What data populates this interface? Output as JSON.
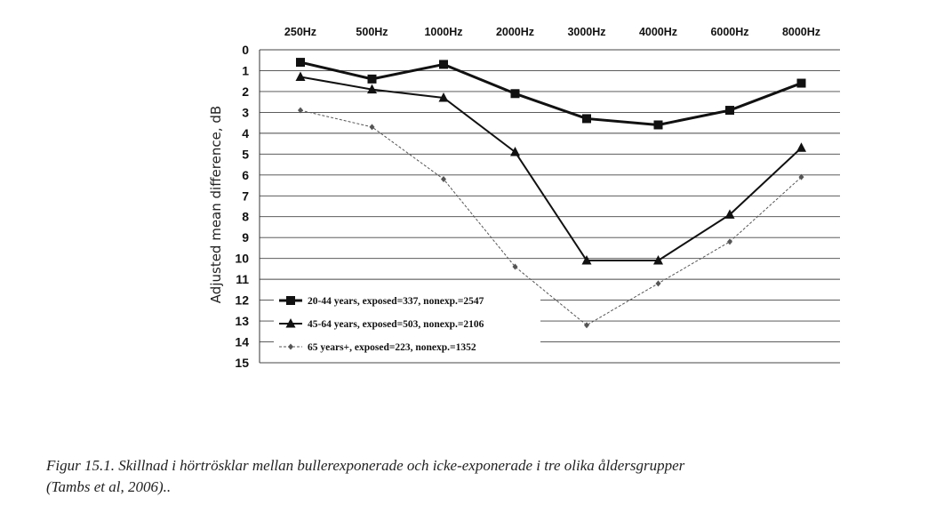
{
  "chart_data": {
    "type": "line",
    "ylabel": "Adjusted mean difference, dB",
    "xlabel": "",
    "categories": [
      "250Hz",
      "500Hz",
      "1000Hz",
      "2000Hz",
      "3000Hz",
      "4000Hz",
      "6000Hz",
      "8000Hz"
    ],
    "ylim": [
      0,
      15
    ],
    "y_inverted": true,
    "y_ticks": [
      "0",
      "1",
      "2",
      "3",
      "4",
      "5",
      "6",
      "7",
      "8",
      "9",
      "10",
      "11",
      "12",
      "13",
      "14",
      "15"
    ],
    "x_axis_position": "top",
    "grid": true,
    "legend_position": "bottom-left",
    "series": [
      {
        "name": "20-44 years, exposed=337, nonexp.=2547",
        "marker": "square",
        "line": "thick",
        "color": "#111111",
        "values": [
          0.6,
          1.4,
          0.7,
          2.1,
          3.3,
          3.6,
          2.9,
          1.6
        ]
      },
      {
        "name": "45-64 years, exposed=503, nonexp.=2106",
        "marker": "triangle",
        "line": "medium",
        "color": "#111111",
        "values": [
          1.3,
          1.9,
          2.3,
          4.9,
          10.1,
          10.1,
          7.9,
          4.7
        ]
      },
      {
        "name": "65 years+, exposed=223, nonexp.=1352",
        "marker": "diamond",
        "line": "thin-dashed",
        "color": "#555555",
        "values": [
          2.9,
          3.7,
          6.2,
          10.4,
          13.2,
          11.2,
          9.2,
          6.1
        ]
      }
    ]
  },
  "caption": {
    "line1": "Figur 15.1. Skillnad i hörtrösklar mellan bullerexponerade och icke-exponerade i tre olika åldersgrupper",
    "line2": "(Tambs et al, 2006).."
  }
}
